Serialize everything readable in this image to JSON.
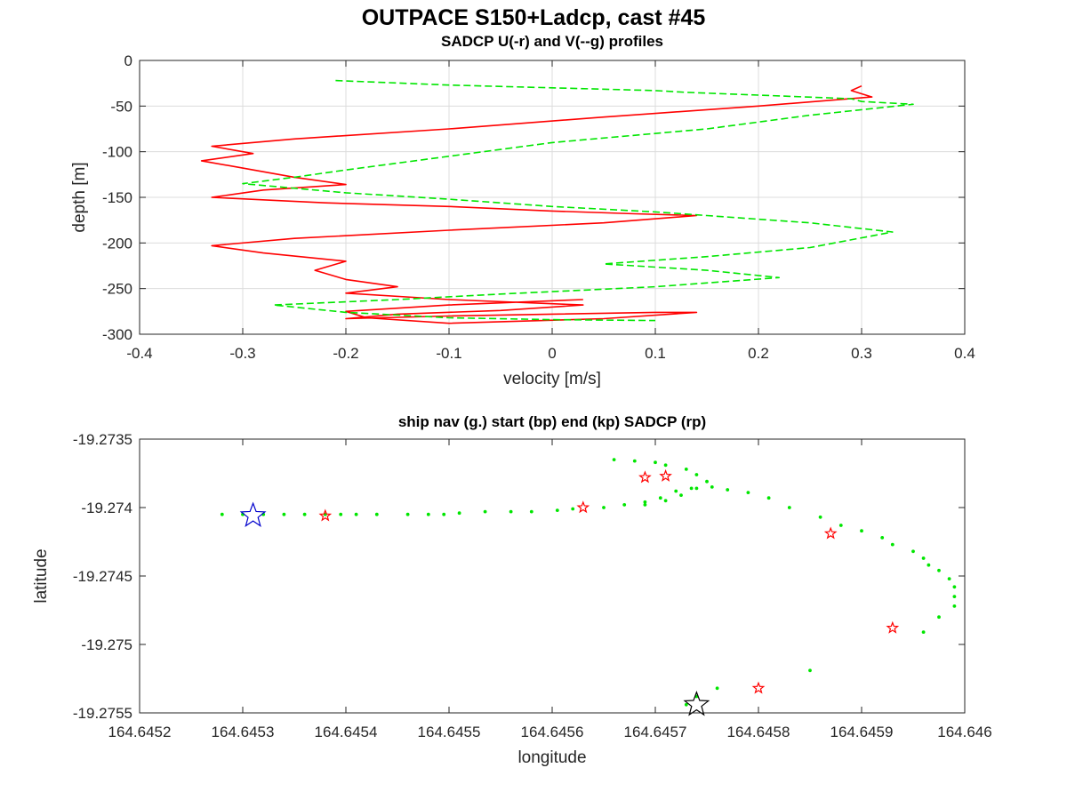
{
  "figure_title": "OUTPACE S150+Ladcp, cast #45",
  "colors": {
    "u_line": "#ff0000",
    "v_line": "#00e600",
    "nav_dots": "#00e600",
    "start_star": "#0000cc",
    "end_star": "#000000",
    "sadcp_star": "#ff0000",
    "grid": "#dcdcdc"
  },
  "chart_data": [
    {
      "type": "line",
      "title": "SADCP U(-r) and V(--g) profiles",
      "xlabel": "velocity [m/s]",
      "ylabel": "depth [m]",
      "xlim": [
        -0.4,
        0.4
      ],
      "ylim": [
        -300,
        0
      ],
      "grid": true,
      "xticks": [
        "-0.4",
        "-0.3",
        "-0.2",
        "-0.1",
        "0",
        "0.1",
        "0.2",
        "0.3",
        "0.4"
      ],
      "yticks": [
        "0",
        "-50",
        "-100",
        "-150",
        "-200",
        "-250",
        "-300"
      ],
      "series": [
        {
          "style": "solid",
          "x": [
            0.3,
            0.29,
            0.31,
            0.2,
            0.05,
            -0.1,
            -0.25,
            -0.33,
            -0.29,
            -0.34,
            -0.3,
            -0.25,
            -0.2,
            -0.28,
            -0.33,
            -0.22,
            -0.1,
            0.0,
            0.08,
            0.14,
            0.05,
            -0.1,
            -0.25,
            -0.33,
            -0.28,
            -0.2,
            -0.23,
            -0.2,
            -0.15,
            -0.2,
            -0.1,
            0.03,
            -0.05,
            -0.15,
            -0.2,
            -0.1,
            0.0,
            0.1,
            0.14,
            0.05,
            -0.1,
            -0.18,
            -0.2,
            -0.1,
            0.03
          ],
          "y": [
            -28,
            -33,
            -40,
            -50,
            -62,
            -75,
            -86,
            -94,
            -102,
            -110,
            -118,
            -128,
            -136,
            -142,
            -150,
            -156,
            -160,
            -165,
            -168,
            -170,
            -178,
            -186,
            -195,
            -203,
            -211,
            -220,
            -230,
            -240,
            -248,
            -255,
            -262,
            -268,
            -274,
            -278,
            -283,
            -280,
            -278,
            -276,
            -276,
            -283,
            -288,
            -282,
            -275,
            -268,
            -262
          ]
        },
        {
          "style": "dashed",
          "x": [
            -0.21,
            -0.1,
            0.0,
            0.1,
            0.13,
            0.2,
            0.29,
            0.3,
            0.35,
            0.25,
            0.15,
            0.0,
            -0.1,
            -0.2,
            -0.25,
            -0.3,
            -0.2,
            -0.1,
            0.0,
            0.1,
            0.15,
            0.25,
            0.33,
            0.25,
            0.15,
            0.05,
            0.15,
            0.22,
            0.1,
            -0.05,
            -0.15,
            -0.27,
            -0.2,
            -0.1,
            0.0,
            0.1
          ],
          "y": [
            -22,
            -27,
            -30,
            -33,
            -35,
            -38,
            -42,
            -45,
            -48,
            -60,
            -75,
            -90,
            -105,
            -120,
            -128,
            -135,
            -145,
            -152,
            -160,
            -166,
            -170,
            -178,
            -188,
            -205,
            -215,
            -223,
            -230,
            -238,
            -248,
            -256,
            -262,
            -268,
            -276,
            -282,
            -284,
            -285
          ]
        }
      ]
    },
    {
      "type": "scatter",
      "title": "ship nav (g.) start (bp) end (kp) SADCP (rp)",
      "xlabel": "longitude",
      "ylabel": "latitude",
      "xlim": [
        164.6452,
        164.646
      ],
      "ylim": [
        -19.2755,
        -19.2735
      ],
      "grid": false,
      "xticks": [
        "164.6452",
        "164.6453",
        "164.6454",
        "164.6455",
        "164.6456",
        "164.6457",
        "164.6458",
        "164.6459",
        "164.646"
      ],
      "yticks": [
        "-19.2735",
        "-19.274",
        "-19.2745",
        "-19.275",
        "-19.2755"
      ],
      "series": [
        {
          "marker": "dot",
          "x": [
            164.64528,
            164.6453,
            164.64532,
            164.64534,
            164.64536,
            164.64538,
            164.645395,
            164.64541,
            164.64543,
            164.64546,
            164.64548,
            164.645495,
            164.64551,
            164.645535,
            164.64556,
            164.64558,
            164.645605,
            164.64562,
            164.64565,
            164.64567,
            164.64569,
            164.645705,
            164.64572,
            164.64574,
            164.645755,
            164.64577,
            164.64579,
            164.64581,
            164.64583,
            164.64586,
            164.64588,
            164.6459,
            164.64592,
            164.64593,
            164.64595,
            164.64596,
            164.645965,
            164.645975,
            164.645985,
            164.64599,
            164.64599,
            164.64599,
            164.645975,
            164.64596,
            164.64566,
            164.64568,
            164.6457,
            164.64571,
            164.64573,
            164.64574,
            164.64575,
            164.645735,
            164.645725,
            164.64571,
            164.64569,
            164.64585,
            164.64576,
            164.64574,
            164.64573
          ],
          "y": [
            -19.27405,
            -19.27405,
            -19.27405,
            -19.27405,
            -19.27405,
            -19.27405,
            -19.27405,
            -19.27405,
            -19.27405,
            -19.27405,
            -19.27405,
            -19.27405,
            -19.27404,
            -19.27403,
            -19.27403,
            -19.27403,
            -19.27402,
            -19.27401,
            -19.274,
            -19.27398,
            -19.27396,
            -19.27393,
            -19.27388,
            -19.27386,
            -19.27385,
            -19.27387,
            -19.27389,
            -19.27393,
            -19.274,
            -19.27407,
            -19.27413,
            -19.27417,
            -19.27422,
            -19.27427,
            -19.27432,
            -19.27437,
            -19.27442,
            -19.27446,
            -19.27452,
            -19.27458,
            -19.27465,
            -19.27472,
            -19.2748,
            -19.27491,
            -19.27365,
            -19.27366,
            -19.27367,
            -19.27369,
            -19.27372,
            -19.27376,
            -19.27381,
            -19.27386,
            -19.27391,
            -19.27395,
            -19.27398,
            -19.27519,
            -19.27532,
            -19.27538,
            -19.27544
          ]
        },
        {
          "marker": "star-red",
          "x": [
            164.64538,
            164.64563,
            164.64569,
            164.64571,
            164.64587,
            164.64593,
            164.6458
          ],
          "y": [
            -19.27406,
            -19.274,
            -19.27378,
            -19.27377,
            -19.27419,
            -19.27488,
            -19.27532
          ]
        },
        {
          "marker": "star-blue",
          "x": [
            164.64531
          ],
          "y": [
            -19.27406
          ]
        },
        {
          "marker": "star-black",
          "x": [
            164.64574
          ],
          "y": [
            -19.27544
          ]
        }
      ]
    }
  ]
}
